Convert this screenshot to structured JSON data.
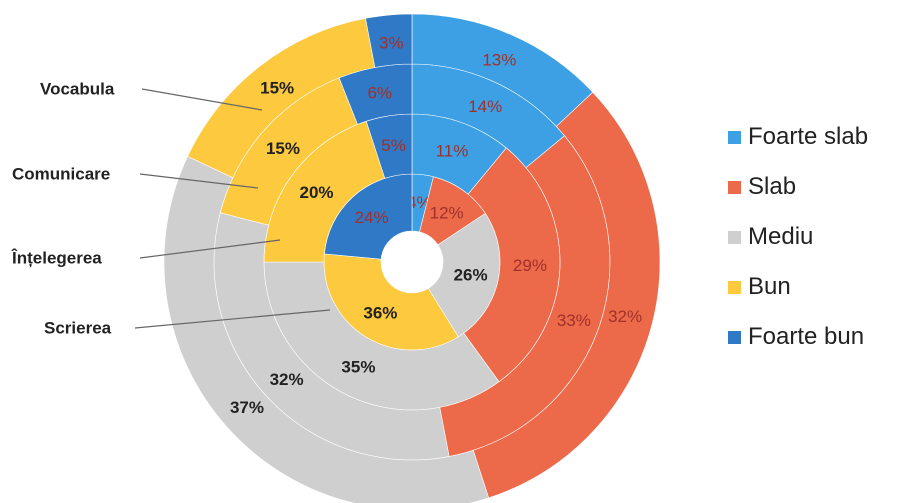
{
  "chart_data": {
    "type": "pie",
    "subtype": "nested-donut",
    "series": [
      {
        "name": "Scrierea",
        "values": [
          4,
          12,
          26,
          36,
          24
        ]
      },
      {
        "name": "Înțelegerea",
        "values": [
          11,
          29,
          35,
          20,
          5
        ]
      },
      {
        "name": "Comunicare",
        "values": [
          14,
          33,
          32,
          15,
          6
        ]
      },
      {
        "name": "Vocabula",
        "values": [
          13,
          32,
          37,
          15,
          3
        ]
      }
    ],
    "categories": [
      "Foarte slab",
      "Slab",
      "Mediu",
      "Bun",
      "Foarte bun"
    ],
    "colors": {
      "Foarte slab": "#3ea0e4",
      "Slab": "#ec6a4a",
      "Mediu": "#cfcfcf",
      "Bun": "#fcc93f",
      "Foarte bun": "#2f79c6"
    },
    "label_colors": {
      "Foarte slab": "#a0302a",
      "Slab": "#a0302a",
      "Mediu": "#222222",
      "Bun": "#222222",
      "Foarte bun": "#a0302a"
    },
    "legend_position": "right",
    "title": "",
    "xlabel": "",
    "ylabel": ""
  }
}
